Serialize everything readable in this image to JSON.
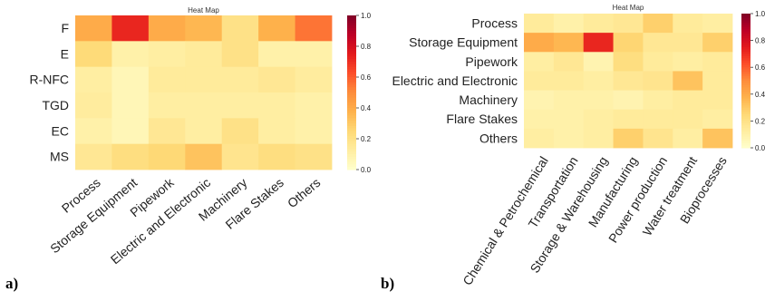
{
  "chart_data": [
    {
      "panel_label": "a)",
      "type": "heatmap",
      "title": "Heat Map",
      "rows": [
        "F",
        "E",
        "R-NFC",
        "TGD",
        "EC",
        "MS"
      ],
      "columns": [
        "Process",
        "Storage Equipment",
        "Pipework",
        "Electric and Electronic",
        "Machinery",
        "Flare Stakes",
        "Others"
      ],
      "values": [
        [
          0.4,
          0.72,
          0.4,
          0.36,
          0.2,
          0.38,
          0.55
        ],
        [
          0.24,
          0.1,
          0.12,
          0.14,
          0.2,
          0.1,
          0.1
        ],
        [
          0.12,
          0.06,
          0.14,
          0.14,
          0.14,
          0.16,
          0.13
        ],
        [
          0.13,
          0.06,
          0.12,
          0.12,
          0.12,
          0.12,
          0.1
        ],
        [
          0.1,
          0.06,
          0.16,
          0.12,
          0.2,
          0.12,
          0.1
        ],
        [
          0.16,
          0.22,
          0.25,
          0.32,
          0.18,
          0.22,
          0.2
        ]
      ],
      "colorbar": {
        "min": 0.0,
        "max": 1.0,
        "ticks": [
          "0.0",
          "0.2",
          "0.4",
          "0.6",
          "0.8",
          "1.0"
        ]
      },
      "colormap": "YlOrRd"
    },
    {
      "panel_label": "b)",
      "type": "heatmap",
      "title": "Heat Map",
      "rows": [
        "Process",
        "Storage Equipment",
        "Pipework",
        "Electric and Electronic",
        "Machinery",
        "Flare Stakes",
        "Others"
      ],
      "columns": [
        "Chemical & Petrochemical",
        "Transportation",
        "Storage & Warehousing",
        "Manufacturing",
        "Power production",
        "Water treatment",
        "Bioprocesses"
      ],
      "values": [
        [
          0.14,
          0.1,
          0.14,
          0.16,
          0.28,
          0.14,
          0.12
        ],
        [
          0.4,
          0.36,
          0.72,
          0.26,
          0.16,
          0.16,
          0.28
        ],
        [
          0.12,
          0.16,
          0.08,
          0.22,
          0.14,
          0.12,
          0.14
        ],
        [
          0.14,
          0.14,
          0.12,
          0.16,
          0.18,
          0.32,
          0.14
        ],
        [
          0.08,
          0.1,
          0.1,
          0.08,
          0.12,
          0.14,
          0.14
        ],
        [
          0.1,
          0.1,
          0.12,
          0.14,
          0.14,
          0.14,
          0.12
        ],
        [
          0.12,
          0.1,
          0.12,
          0.28,
          0.18,
          0.12,
          0.32
        ]
      ],
      "colorbar": {
        "min": 0.0,
        "max": 1.0,
        "ticks": [
          "0.0",
          "0.2",
          "0.4",
          "0.6",
          "0.8",
          "1.0"
        ]
      },
      "colormap": "YlOrRd"
    }
  ]
}
